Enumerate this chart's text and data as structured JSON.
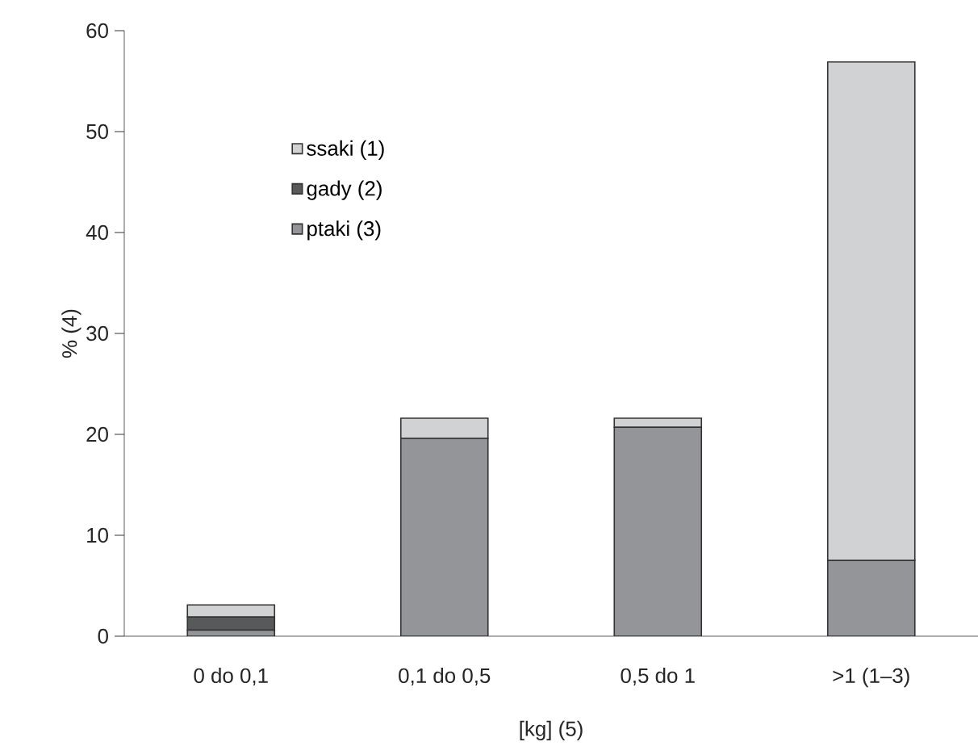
{
  "chart_data": {
    "type": "bar",
    "stacked": true,
    "xlabel": "[kg]  (5)",
    "ylabel": "% (4)",
    "categories": [
      "0 do 0,1",
      "0,1 do 0,5",
      "0,5 do 1",
      ">1 (1–3)"
    ],
    "series": [
      {
        "name": "ptaki (3)",
        "color": "#939598",
        "values": [
          0.6,
          19.6,
          20.7,
          7.5
        ]
      },
      {
        "name": "gady (2)",
        "color": "#58595b",
        "values": [
          1.3,
          0,
          0,
          0
        ]
      },
      {
        "name": "ssaki (1)",
        "color": "#d1d2d4",
        "values": [
          1.2,
          2.0,
          0.9,
          49.4
        ]
      }
    ],
    "ylim": [
      0,
      60
    ],
    "yticks": [
      0,
      10,
      20,
      30,
      40,
      50,
      60
    ],
    "legend": "top left",
    "grid": false
  }
}
